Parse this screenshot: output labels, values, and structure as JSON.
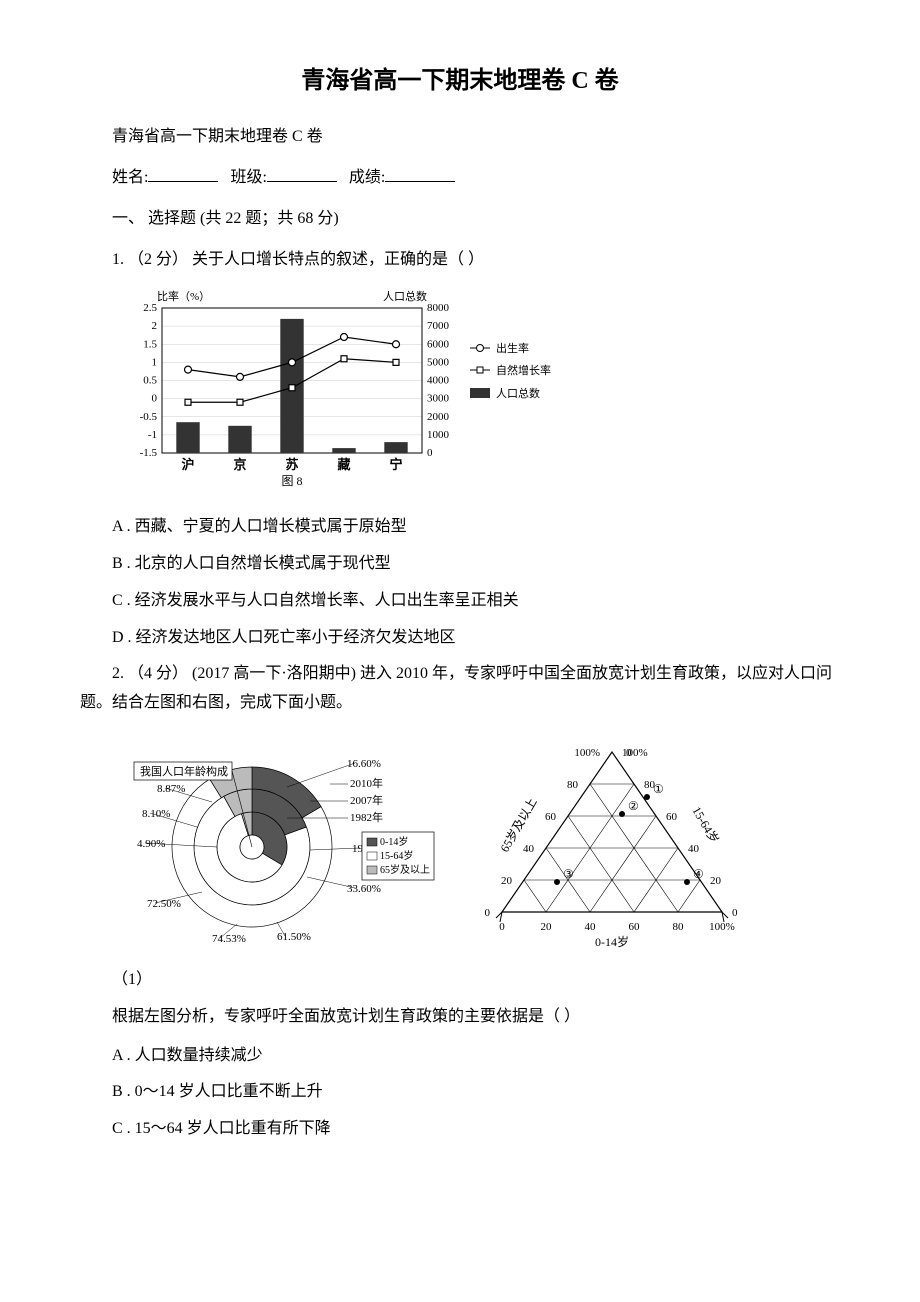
{
  "title": "青海省高一下期末地理卷 C 卷",
  "subtitle": "青海省高一下期末地理卷 C 卷",
  "form": {
    "name_label": "姓名:",
    "class_label": "班级:",
    "score_label": "成绩:"
  },
  "section1": "一、 选择题 (共 22 题；共 68 分)",
  "q1": {
    "intro": "1. （2 分） 关于人口增长特点的叙述，正确的是（ ）",
    "optA": "A . 西藏、宁夏的人口增长模式属于原始型",
    "optB": "B . 北京的人口自然增长模式属于现代型",
    "optC": "C . 经济发展水平与人口自然增长率、人口出生率呈正相关",
    "optD": "D . 经济发达地区人口死亡率小于经济欠发达地区"
  },
  "q2": {
    "intro": "2. （4 分） (2017 高一下·洛阳期中) 进入 2010 年，专家呼吁中国全面放宽计划生育政策，以应对人口问题。结合左图和右图，完成下面小题。",
    "sub1": "（1）",
    "sub1_text": "根据左图分析，专家呼吁全面放宽计划生育政策的主要依据是（ ）",
    "optA": "A . 人口数量持续减少",
    "optB": "B . 0～14 岁人口比重不断上升",
    "optC": "C . 15～64 岁人口比重有所下降"
  },
  "chart1": {
    "type": "bar+line",
    "y1_label": "比率（%）",
    "y2_label": "人口总数",
    "caption": "图 8",
    "categories": [
      "沪",
      "京",
      "苏",
      "藏",
      "宁"
    ],
    "y1_ticks": [
      "2.5",
      "2",
      "1.5",
      "1",
      "0.5",
      "0",
      "-0.5",
      "-1",
      "-1.5"
    ],
    "y2_ticks": [
      "8000",
      "7000",
      "6000",
      "5000",
      "4000",
      "3000",
      "2000",
      "1000",
      "0"
    ],
    "legend_birth": "出生率",
    "legend_growth": "自然增长率",
    "legend_pop": "人口总数",
    "bar_values": [
      1700,
      1500,
      7400,
      270,
      600
    ],
    "birth_values": [
      0.8,
      0.6,
      1.0,
      1.7,
      1.5
    ],
    "growth_values": [
      -0.1,
      -0.1,
      0.3,
      1.1,
      1.0
    ],
    "bar_color": "#333333",
    "line_color": "#000000",
    "grid_color": "#cccccc",
    "bg": "#ffffff",
    "font_size": 11
  },
  "chart2_left": {
    "type": "radial",
    "title": "我国人口年龄构成",
    "years": [
      "2010年",
      "2007年",
      "1982年"
    ],
    "legend": [
      "0-14岁",
      "15-64岁",
      "65岁及以上"
    ],
    "labels": [
      "16.60%",
      "8.87%",
      "8.10%",
      "4.90%",
      "72.50%",
      "74.53%",
      "61.50%",
      "33.60%",
      "19.40%"
    ]
  },
  "chart2_right": {
    "type": "ternary",
    "axis_left": "65岁及以上",
    "axis_right": "15-64岁",
    "axis_bottom": "0-14岁",
    "ticks": [
      "0",
      "20",
      "40",
      "60",
      "80",
      "100%"
    ],
    "points": [
      "①",
      "②",
      "③",
      "④"
    ]
  }
}
